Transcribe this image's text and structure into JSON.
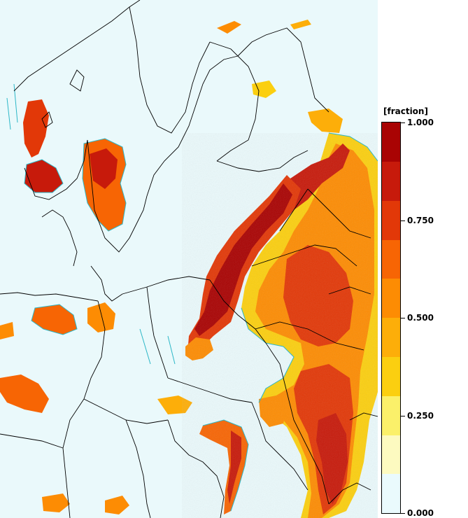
{
  "legend": {
    "title": "[fraction]",
    "tick_labels": [
      "1.000",
      "0.750",
      "0.500",
      "0.250",
      "0.000"
    ],
    "tick_values": [
      1.0,
      0.75,
      0.5,
      0.25,
      0.0
    ],
    "colors": [
      "#eafafd",
      "#fdfac0",
      "#fbf06a",
      "#fbcf10",
      "#fdae09",
      "#fd8c03",
      "#f76504",
      "#e23808",
      "#c71a0b",
      "#a90303"
    ],
    "value_range": [
      0.0,
      1.0
    ],
    "levels": 10
  },
  "map": {
    "background_color": "#eaf9fb",
    "boundary_color": "#000000",
    "contour_color": "#2cb7c7"
  }
}
